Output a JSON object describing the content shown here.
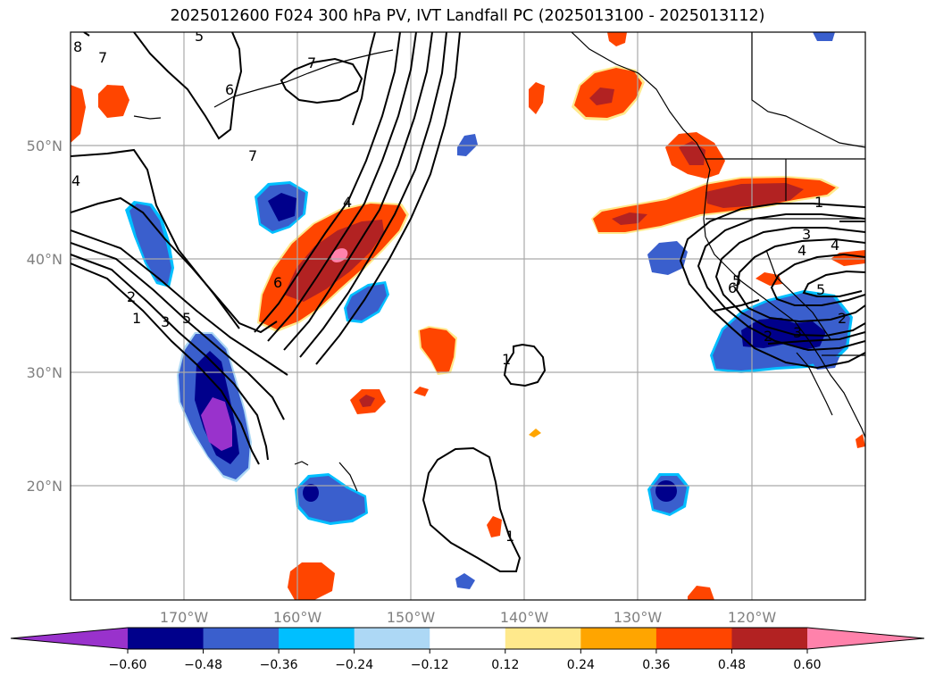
{
  "title": "2025012600 F024 300 hPa PV, IVT Landfall PC (2025013100 - 2025013112)",
  "map": {
    "lon_ticks": [
      "170°W",
      "160°W",
      "150°W",
      "140°W",
      "130°W",
      "120°W"
    ],
    "lat_ticks": [
      "50°N",
      "40°N",
      "30°N",
      "20°N"
    ],
    "gridline_color": "#a9a9a9",
    "coastline_color": "#000000"
  },
  "contour_labels": [
    "8",
    "7",
    "5",
    "6",
    "7",
    "4",
    "1",
    "2",
    "3",
    "4",
    "5",
    "6",
    "7",
    "1",
    "2",
    "3",
    "4",
    "5",
    "6",
    "1",
    "1",
    "2",
    "3",
    "4",
    "5"
  ],
  "colorbar": {
    "levels": [
      "−0.60",
      "−0.48",
      "−0.36",
      "−0.24",
      "−0.12",
      "0.12",
      "0.24",
      "0.36",
      "0.48",
      "0.60"
    ],
    "colors": [
      "#9932CC",
      "#00008B",
      "#3A5FCD",
      "#00BFFF",
      "#ADD8F5",
      "#FFFFFF",
      "#FFE98C",
      "#FFA500",
      "#FF4500",
      "#B22222",
      "#FF82AB"
    ],
    "extend": "both"
  }
}
